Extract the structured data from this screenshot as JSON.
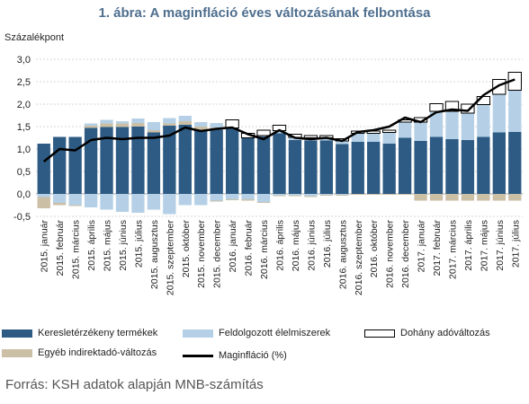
{
  "title": "1. ábra: A maginfláció éves változásának felbontása",
  "source": "Forrás: KSH adatok alapján MNB-számítás",
  "colors": {
    "keresletérzékeny": "#2e5b84",
    "feldolgozott": "#b5d0e6",
    "dohany": "#ffffff",
    "egyeb": "#cbbfa6",
    "maginflacio": "#000000"
  },
  "legend": {
    "keresletérzékeny": "Keresletérzékeny termékek",
    "feldolgozott": "Feldolgozott élelmiszerek",
    "dohany": "Dohány adóváltozás",
    "egyeb": "Egyéb indirektadó-változás",
    "maginflacio": "Maginfláció (%)"
  },
  "chart_data": {
    "type": "bar",
    "stacked": true,
    "ylabel": "Százalékpont",
    "ylim": [
      -0.5,
      3.0
    ],
    "yticks": [
      "3,0",
      "2,5",
      "2,0",
      "1,5",
      "1,0",
      "0,5",
      "0,0",
      "-0,5"
    ],
    "categories": [
      "2015. január",
      "2015. február",
      "2015. március",
      "2015. április",
      "2015. május",
      "2015. június",
      "2015. július",
      "2015. augusztus",
      "2015. szeptember",
      "2015. október",
      "2015. november",
      "2015. december",
      "2016. január",
      "2016. február",
      "2016. március",
      "2016. április",
      "2016. május",
      "2016. június",
      "2016. július",
      "2016. augusztus",
      "2016. szeptember",
      "2016. október",
      "2016. november",
      "2016. december",
      "2017. január",
      "2017. február",
      "2017. március",
      "2017. április",
      "2017. május",
      "2017. június",
      "2017. július"
    ],
    "series": [
      {
        "name": "Keresletérzékeny termékek",
        "values": [
          1.12,
          1.27,
          1.27,
          1.47,
          1.49,
          1.49,
          1.5,
          1.37,
          1.52,
          1.54,
          1.43,
          1.43,
          1.47,
          1.25,
          1.28,
          1.35,
          1.2,
          1.19,
          1.19,
          1.11,
          1.16,
          1.16,
          1.12,
          1.25,
          1.18,
          1.27,
          1.22,
          1.2,
          1.27,
          1.37,
          1.38
        ]
      },
      {
        "name": "Feldolgozott élelmiszerek (pozitív)",
        "values": [
          0,
          0,
          0,
          0.05,
          0.08,
          0.05,
          0.1,
          0.18,
          0.12,
          0.12,
          0.1,
          0.1,
          0.0,
          0.0,
          0.02,
          0.06,
          0.06,
          0.06,
          0.06,
          0.07,
          0.19,
          0.19,
          0.25,
          0.35,
          0.42,
          0.57,
          0.62,
          0.6,
          0.72,
          0.85,
          0.93
        ]
      },
      {
        "name": "Feldolgozott élelmiszerek (negatív)",
        "values": [
          -0.07,
          -0.2,
          -0.25,
          -0.3,
          -0.35,
          -0.4,
          -0.42,
          -0.35,
          -0.45,
          -0.25,
          -0.25,
          -0.15,
          -0.12,
          -0.12,
          -0.18,
          -0.03,
          -0.03,
          -0.05,
          -0.02,
          -0.02,
          0,
          0,
          0,
          0,
          0,
          0,
          0,
          0,
          0,
          0,
          0
        ]
      },
      {
        "name": "Dohány adóváltozás",
        "values": [
          0,
          0,
          0,
          0,
          0,
          0,
          0,
          0,
          0,
          0,
          0,
          0,
          0.18,
          0.1,
          0.12,
          0.12,
          0.07,
          0.05,
          0.05,
          0.05,
          0.05,
          0.05,
          0.05,
          0.05,
          0.1,
          0.17,
          0.22,
          0.2,
          0.18,
          0.33,
          0.4
        ]
      },
      {
        "name": "Egyéb indirektadó-változás (pozitív)",
        "values": [
          0,
          0,
          0,
          0.05,
          0.08,
          0.08,
          0.08,
          0.05,
          0.05,
          0.08,
          0.07,
          0.05,
          0,
          0,
          0,
          0,
          0,
          0,
          0,
          0,
          0,
          0,
          0,
          0,
          0,
          0,
          0,
          0,
          0,
          0,
          0
        ]
      },
      {
        "name": "Egyéb indirektadó-változás (negatív)",
        "values": [
          -0.25,
          -0.05,
          -0.02,
          0,
          0,
          0,
          0,
          0,
          0,
          0,
          0,
          -0.02,
          -0.02,
          -0.03,
          -0.02,
          -0.02,
          -0.02,
          -0.02,
          -0.02,
          -0.02,
          -0.02,
          -0.02,
          -0.02,
          -0.02,
          -0.15,
          -0.15,
          -0.15,
          -0.15,
          -0.15,
          -0.15,
          -0.15
        ]
      },
      {
        "name": "Maginfláció (%)",
        "type": "line",
        "values": [
          0.72,
          1.0,
          0.97,
          1.2,
          1.25,
          1.22,
          1.25,
          1.25,
          1.3,
          1.48,
          1.4,
          1.45,
          1.48,
          1.33,
          1.22,
          1.42,
          1.25,
          1.22,
          1.25,
          1.18,
          1.38,
          1.42,
          1.5,
          1.7,
          1.6,
          1.82,
          1.88,
          1.85,
          2.2,
          2.42,
          2.55
        ]
      }
    ]
  }
}
